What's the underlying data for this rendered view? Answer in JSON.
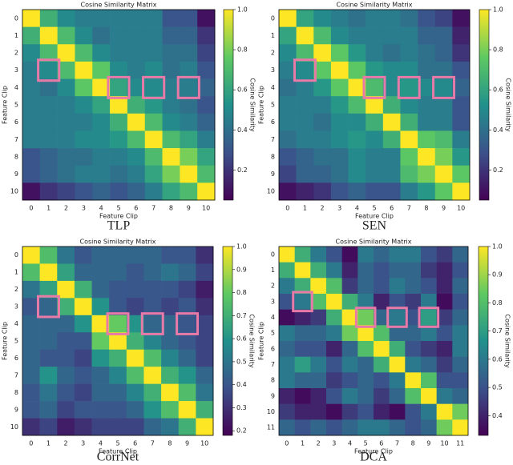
{
  "chart_data": [
    {
      "type": "heatmap",
      "title": "Cosine Similarity Matrix",
      "xlabel": "Feature Clip",
      "ylabel": "Feature Clip",
      "colorbar_label": "Cosine Similarity",
      "caption": "TLP",
      "categories": [
        "0",
        "1",
        "2",
        "3",
        "4",
        "5",
        "6",
        "7",
        "8",
        "9",
        "10"
      ],
      "clim": [
        0.05,
        1.0
      ],
      "cticks": [
        0.2,
        0.4,
        0.6,
        0.8,
        {
          "value": 1.0,
          "label": "1.0"
        }
      ],
      "values": [
        [
          1.0,
          0.65,
          0.5,
          0.45,
          0.45,
          0.45,
          0.45,
          0.45,
          0.3,
          0.3,
          0.1
        ],
        [
          0.65,
          1.0,
          0.7,
          0.5,
          0.4,
          0.45,
          0.45,
          0.45,
          0.35,
          0.35,
          0.2
        ],
        [
          0.5,
          0.7,
          1.0,
          0.7,
          0.5,
          0.45,
          0.45,
          0.45,
          0.4,
          0.4,
          0.25
        ],
        [
          0.45,
          0.5,
          0.7,
          1.0,
          0.75,
          0.5,
          0.45,
          0.5,
          0.4,
          0.45,
          0.3
        ],
        [
          0.45,
          0.4,
          0.5,
          0.75,
          1.0,
          0.6,
          0.5,
          0.5,
          0.45,
          0.45,
          0.35
        ],
        [
          0.45,
          0.45,
          0.45,
          0.5,
          0.6,
          1.0,
          0.65,
          0.55,
          0.45,
          0.4,
          0.3
        ],
        [
          0.45,
          0.45,
          0.45,
          0.45,
          0.5,
          0.65,
          1.0,
          0.7,
          0.5,
          0.45,
          0.35
        ],
        [
          0.45,
          0.45,
          0.45,
          0.5,
          0.5,
          0.55,
          0.7,
          1.0,
          0.7,
          0.6,
          0.45
        ],
        [
          0.3,
          0.35,
          0.4,
          0.4,
          0.45,
          0.45,
          0.5,
          0.7,
          1.0,
          0.8,
          0.6
        ],
        [
          0.3,
          0.35,
          0.4,
          0.45,
          0.45,
          0.4,
          0.45,
          0.6,
          0.8,
          1.0,
          0.7
        ],
        [
          0.1,
          0.2,
          0.25,
          0.3,
          0.35,
          0.3,
          0.35,
          0.45,
          0.6,
          0.7,
          1.0
        ]
      ]
    },
    {
      "type": "heatmap",
      "title": "Cosine Similarity Matrix",
      "xlabel": "Feature Clip",
      "ylabel": "Feature Clip",
      "colorbar_label": "Cosine Similarity",
      "caption": "SEN",
      "categories": [
        "0",
        "1",
        "2",
        "3",
        "4",
        "5",
        "6",
        "7",
        "8",
        "9",
        "10"
      ],
      "clim": [
        0.05,
        1.0
      ],
      "cticks": [
        0.2,
        0.4,
        0.6,
        0.8,
        {
          "value": 1.0,
          "label": "1.0"
        }
      ],
      "values": [
        [
          1.0,
          0.6,
          0.5,
          0.45,
          0.4,
          0.45,
          0.45,
          0.4,
          0.3,
          0.25,
          0.1
        ],
        [
          0.6,
          1.0,
          0.7,
          0.5,
          0.45,
          0.45,
          0.45,
          0.45,
          0.35,
          0.35,
          0.15
        ],
        [
          0.5,
          0.7,
          1.0,
          0.75,
          0.55,
          0.45,
          0.4,
          0.45,
          0.4,
          0.35,
          0.2
        ],
        [
          0.45,
          0.5,
          0.75,
          1.0,
          0.75,
          0.55,
          0.5,
          0.5,
          0.4,
          0.4,
          0.3
        ],
        [
          0.4,
          0.45,
          0.55,
          0.75,
          1.0,
          0.7,
          0.5,
          0.55,
          0.5,
          0.5,
          0.35
        ],
        [
          0.45,
          0.45,
          0.45,
          0.55,
          0.7,
          1.0,
          0.65,
          0.5,
          0.45,
          0.45,
          0.3
        ],
        [
          0.45,
          0.45,
          0.4,
          0.5,
          0.5,
          0.65,
          1.0,
          0.65,
          0.45,
          0.45,
          0.3
        ],
        [
          0.4,
          0.45,
          0.45,
          0.5,
          0.55,
          0.5,
          0.65,
          1.0,
          0.75,
          0.7,
          0.45
        ],
        [
          0.3,
          0.35,
          0.4,
          0.4,
          0.5,
          0.45,
          0.45,
          0.75,
          1.0,
          0.8,
          0.55
        ],
        [
          0.25,
          0.35,
          0.35,
          0.4,
          0.5,
          0.45,
          0.45,
          0.7,
          0.8,
          1.0,
          0.75
        ],
        [
          0.1,
          0.15,
          0.2,
          0.3,
          0.35,
          0.3,
          0.3,
          0.45,
          0.55,
          0.75,
          1.0
        ]
      ]
    },
    {
      "type": "heatmap",
      "title": "Cosine Similarity Matrix",
      "xlabel": "Feature Clip",
      "ylabel": "Feature Clip",
      "colorbar_label": "Cosine Similarity",
      "caption": "CorrNet",
      "categories": [
        "0",
        "1",
        "2",
        "3",
        "4",
        "5",
        "6",
        "7",
        "8",
        "9",
        "10"
      ],
      "clim": [
        0.18,
        1.0
      ],
      "cticks": [
        0.2,
        0.3,
        0.4,
        0.5,
        0.6,
        0.7,
        0.8,
        0.9,
        {
          "value": 1.0,
          "label": "1.0"
        }
      ],
      "values": [
        [
          1.0,
          0.75,
          0.5,
          0.4,
          0.45,
          0.45,
          0.45,
          0.45,
          0.4,
          0.4,
          0.3
        ],
        [
          0.75,
          1.0,
          0.65,
          0.45,
          0.45,
          0.45,
          0.4,
          0.45,
          0.5,
          0.45,
          0.35
        ],
        [
          0.5,
          0.65,
          1.0,
          0.7,
          0.45,
          0.4,
          0.4,
          0.4,
          0.4,
          0.35,
          0.25
        ],
        [
          0.4,
          0.45,
          0.7,
          1.0,
          0.6,
          0.4,
          0.35,
          0.4,
          0.35,
          0.4,
          0.3
        ],
        [
          0.45,
          0.45,
          0.45,
          0.6,
          1.0,
          0.8,
          0.6,
          0.45,
          0.45,
          0.4,
          0.35
        ],
        [
          0.45,
          0.45,
          0.4,
          0.4,
          0.8,
          1.0,
          0.7,
          0.55,
          0.45,
          0.4,
          0.35
        ],
        [
          0.45,
          0.4,
          0.4,
          0.35,
          0.6,
          0.7,
          1.0,
          0.75,
          0.55,
          0.45,
          0.35
        ],
        [
          0.45,
          0.6,
          0.45,
          0.4,
          0.45,
          0.55,
          0.75,
          1.0,
          0.7,
          0.6,
          0.45
        ],
        [
          0.4,
          0.5,
          0.4,
          0.35,
          0.45,
          0.45,
          0.55,
          0.7,
          1.0,
          0.75,
          0.5
        ],
        [
          0.4,
          0.45,
          0.35,
          0.4,
          0.4,
          0.4,
          0.45,
          0.6,
          0.75,
          1.0,
          0.7
        ],
        [
          0.3,
          0.35,
          0.25,
          0.3,
          0.35,
          0.35,
          0.35,
          0.45,
          0.5,
          0.7,
          1.0
        ]
      ]
    },
    {
      "type": "heatmap",
      "title": "Cosine Similarity Matrix",
      "xlabel": "Feature Clip",
      "ylabel": "Feature Clip",
      "colorbar_label": "Cosine Similarity",
      "caption": "DCA",
      "categories": [
        "0",
        "1",
        "2",
        "3",
        "4",
        "5",
        "6",
        "7",
        "8",
        "9",
        "10",
        "11"
      ],
      "clim": [
        0.33,
        1.0
      ],
      "cticks": [
        0.4,
        0.5,
        0.6,
        0.7,
        0.8,
        0.9,
        {
          "value": 1.0,
          "label": "1.0"
        }
      ],
      "values": [
        [
          1.0,
          0.75,
          0.6,
          0.5,
          0.35,
          0.6,
          0.55,
          0.6,
          0.6,
          0.5,
          0.45,
          0.55
        ],
        [
          0.75,
          1.0,
          0.75,
          0.6,
          0.4,
          0.55,
          0.5,
          0.55,
          0.55,
          0.45,
          0.4,
          0.5
        ],
        [
          0.6,
          0.75,
          1.0,
          0.8,
          0.45,
          0.55,
          0.5,
          0.6,
          0.55,
          0.5,
          0.4,
          0.55
        ],
        [
          0.5,
          0.6,
          0.8,
          1.0,
          0.75,
          0.6,
          0.4,
          0.5,
          0.45,
          0.6,
          0.35,
          0.5
        ],
        [
          0.35,
          0.4,
          0.45,
          0.75,
          1.0,
          0.85,
          0.55,
          0.6,
          0.5,
          0.7,
          0.45,
          0.55
        ],
        [
          0.6,
          0.55,
          0.55,
          0.6,
          0.85,
          1.0,
          0.8,
          0.55,
          0.55,
          0.6,
          0.5,
          0.6
        ],
        [
          0.55,
          0.5,
          0.5,
          0.4,
          0.55,
          0.8,
          1.0,
          0.75,
          0.5,
          0.45,
          0.4,
          0.6
        ],
        [
          0.6,
          0.7,
          0.6,
          0.5,
          0.6,
          0.55,
          0.75,
          1.0,
          0.6,
          0.55,
          0.45,
          0.55
        ],
        [
          0.6,
          0.55,
          0.55,
          0.45,
          0.5,
          0.55,
          0.5,
          0.6,
          1.0,
          0.8,
          0.5,
          0.5
        ],
        [
          0.4,
          0.35,
          0.4,
          0.5,
          0.6,
          0.55,
          0.45,
          0.55,
          0.8,
          1.0,
          0.6,
          0.55
        ],
        [
          0.45,
          0.4,
          0.4,
          0.35,
          0.45,
          0.5,
          0.4,
          0.35,
          0.5,
          0.6,
          1.0,
          0.85
        ],
        [
          0.55,
          0.5,
          0.55,
          0.5,
          0.55,
          0.6,
          0.6,
          0.55,
          0.5,
          0.55,
          0.85,
          1.0
        ]
      ]
    }
  ]
}
